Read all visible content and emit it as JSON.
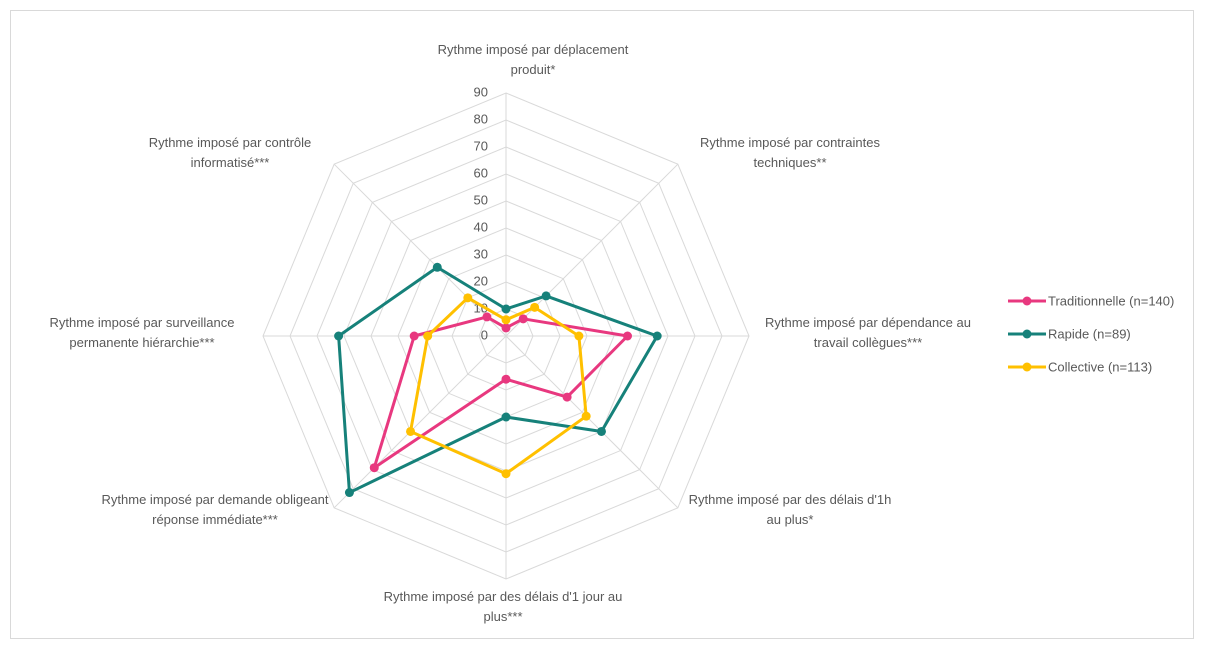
{
  "chart_data": {
    "type": "radar",
    "categories": [
      "Rythme imposé par déplacement produit*",
      "Rythme imposé par contraintes techniques**",
      "Rythme imposé par dépendance au travail collègues***",
      "Rythme imposé par des délais d'1h au plus*",
      "Rythme imposé par des délais d'1 jour au plus***",
      "Rythme imposé par demande obligeant réponse immédiate***",
      "Rythme imposé par surveillance permanente hiérarchie***",
      "Rythme imposé par contrôle informatisé***"
    ],
    "series": [
      {
        "name": "Traditionnelle (n=140)",
        "color": "#e8387f",
        "values": [
          3,
          9,
          45,
          32,
          16,
          69,
          34,
          10
        ]
      },
      {
        "name": "Rapide (n=89)",
        "color": "#16817a",
        "values": [
          10,
          21,
          56,
          50,
          30,
          82,
          62,
          36
        ]
      },
      {
        "name": "Collective (n=113)",
        "color": "#ffc000",
        "values": [
          6,
          15,
          27,
          42,
          51,
          50,
          29,
          20
        ]
      }
    ],
    "ylim": [
      0,
      90
    ],
    "yticks": [
      0,
      10,
      20,
      30,
      40,
      50,
      60,
      70,
      80,
      90
    ],
    "grid": true,
    "legend": "right"
  }
}
